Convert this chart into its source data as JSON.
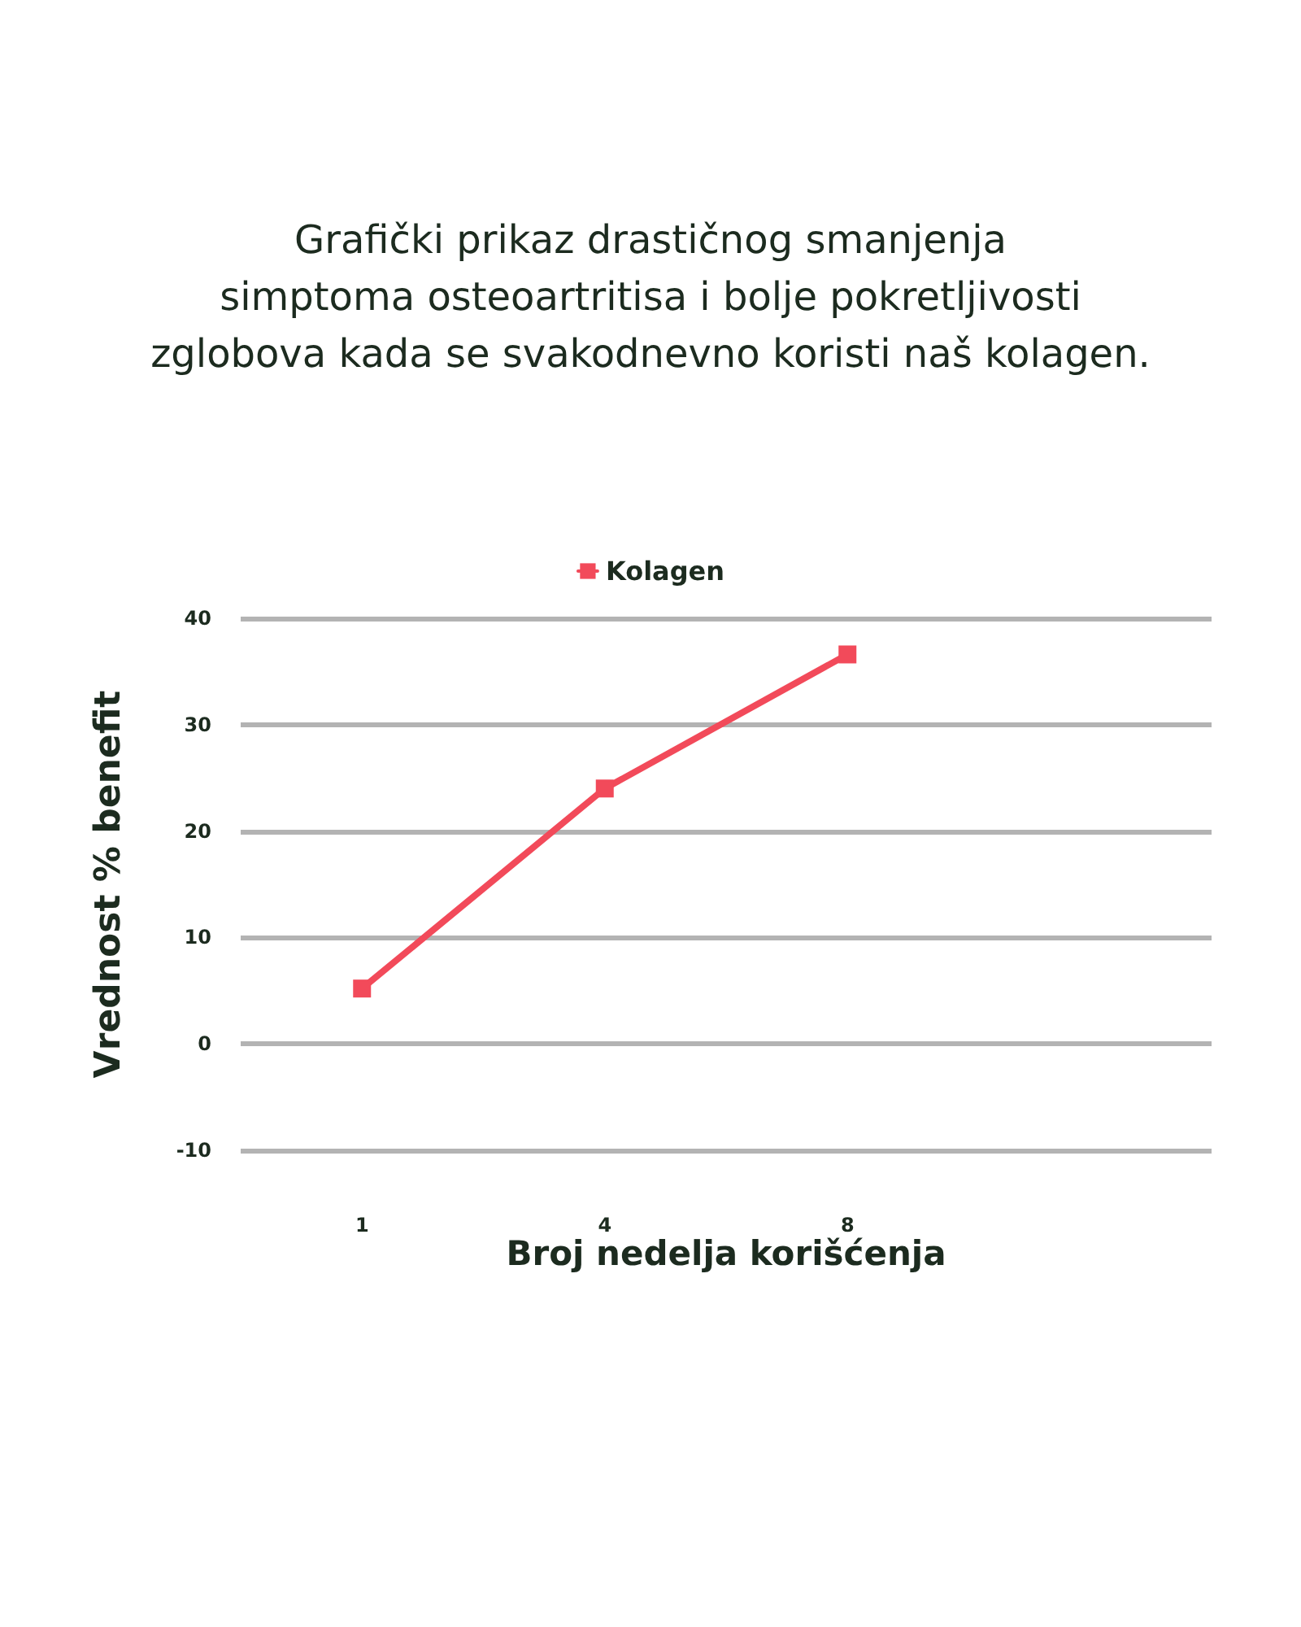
{
  "chart_data": {
    "type": "line",
    "title": "Grafički prikaz drastičnog smanjenja\nsimptoma osteoartritisa i bolje pokretljivosti\nzglobova kada se svakodnevno koristi naš kolagen.",
    "xlabel": "Broj nedelja korišćenja",
    "ylabel": "Vrednost % benefit",
    "categories": [
      "1",
      "4",
      "8",
      null
    ],
    "series": [
      {
        "name": "Kolagen",
        "color": "#f24a5a",
        "values": [
          5.2,
          24,
          36.6,
          null
        ]
      }
    ],
    "ylim": [
      -10,
      40
    ],
    "yticks": [
      -10,
      0,
      10,
      20,
      30,
      40
    ],
    "grid": "y",
    "legend": "top",
    "marker": "square",
    "line_style": "solid"
  }
}
